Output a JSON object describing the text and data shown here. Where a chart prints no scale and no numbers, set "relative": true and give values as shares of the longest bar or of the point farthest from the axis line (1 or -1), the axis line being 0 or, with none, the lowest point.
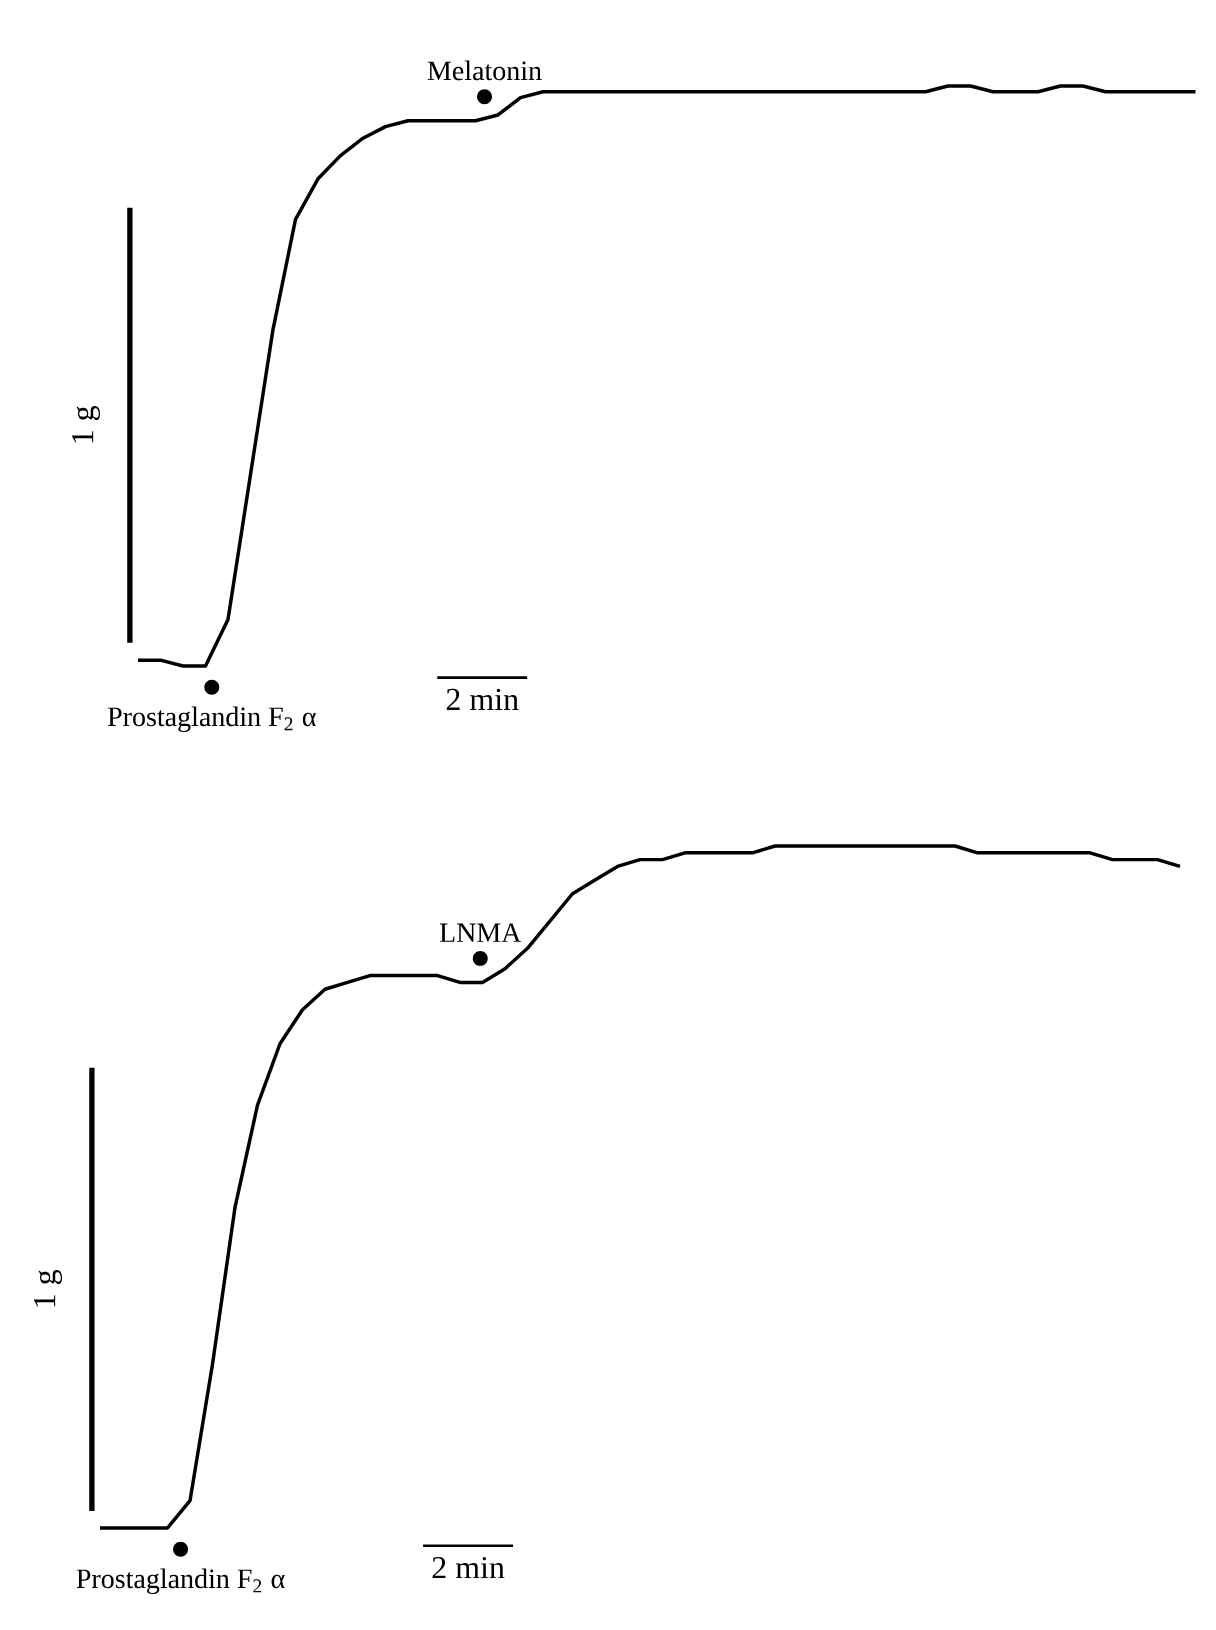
{
  "chart_data": [
    {
      "type": "line",
      "relative": true,
      "color": "#000000",
      "categories": [
        null,
        null,
        null,
        null,
        null,
        null,
        null,
        null,
        null,
        null,
        null,
        null,
        null,
        null,
        null,
        null,
        null,
        null,
        null,
        null,
        null,
        null,
        null,
        null,
        null,
        null,
        null,
        null,
        null,
        null,
        null,
        null,
        null,
        null,
        null,
        null,
        null,
        null,
        null,
        null,
        null,
        null,
        null,
        null,
        null,
        null,
        null,
        null
      ],
      "values": [
        0.01,
        0.01,
        0,
        0,
        0.08,
        0.33,
        0.58,
        0.77,
        0.84,
        0.88,
        0.91,
        0.93,
        0.94,
        0.94,
        0.94,
        0.94,
        0.95,
        0.98,
        0.99,
        0.99,
        0.99,
        0.99,
        0.99,
        0.99,
        0.99,
        0.99,
        0.99,
        0.99,
        0.99,
        0.99,
        0.99,
        0.99,
        0.99,
        0.99,
        0.99,
        0.99,
        1,
        1,
        0.99,
        0.99,
        0.99,
        1,
        1,
        0.99,
        0.99,
        0.99,
        0.99,
        0.99
      ],
      "annotations": [
        "Melatonin",
        "Prostaglandin F$_{2}$ α",
        "1 g",
        "2 min"
      ]
    },
    {
      "type": "line",
      "relative": true,
      "color": "#000000",
      "categories": [
        null,
        null,
        null,
        null,
        null,
        null,
        null,
        null,
        null,
        null,
        null,
        null,
        null,
        null,
        null,
        null,
        null,
        null,
        null,
        null,
        null,
        null,
        null,
        null,
        null,
        null,
        null,
        null,
        null,
        null,
        null,
        null,
        null,
        null,
        null,
        null,
        null,
        null,
        null,
        null,
        null,
        null,
        null,
        null,
        null,
        null,
        null,
        null,
        null
      ],
      "values": [
        0,
        0,
        0,
        0,
        0.04,
        0.24,
        0.47,
        0.62,
        0.71,
        0.76,
        0.79,
        0.8,
        0.81,
        0.81,
        0.81,
        0.81,
        0.8,
        0.8,
        0.82,
        0.85,
        0.89,
        0.93,
        0.95,
        0.97,
        0.98,
        0.98,
        0.99,
        0.99,
        0.99,
        0.99,
        1,
        1,
        1,
        1,
        1,
        1,
        1,
        1,
        1,
        0.99,
        0.99,
        0.99,
        0.99,
        0.99,
        0.99,
        0.98,
        0.98,
        0.98,
        0.97
      ],
      "annotations": [
        "LNMA",
        "Prostaglandin F$_{2}$ α",
        "1 g",
        "2 min"
      ]
    }
  ]
}
